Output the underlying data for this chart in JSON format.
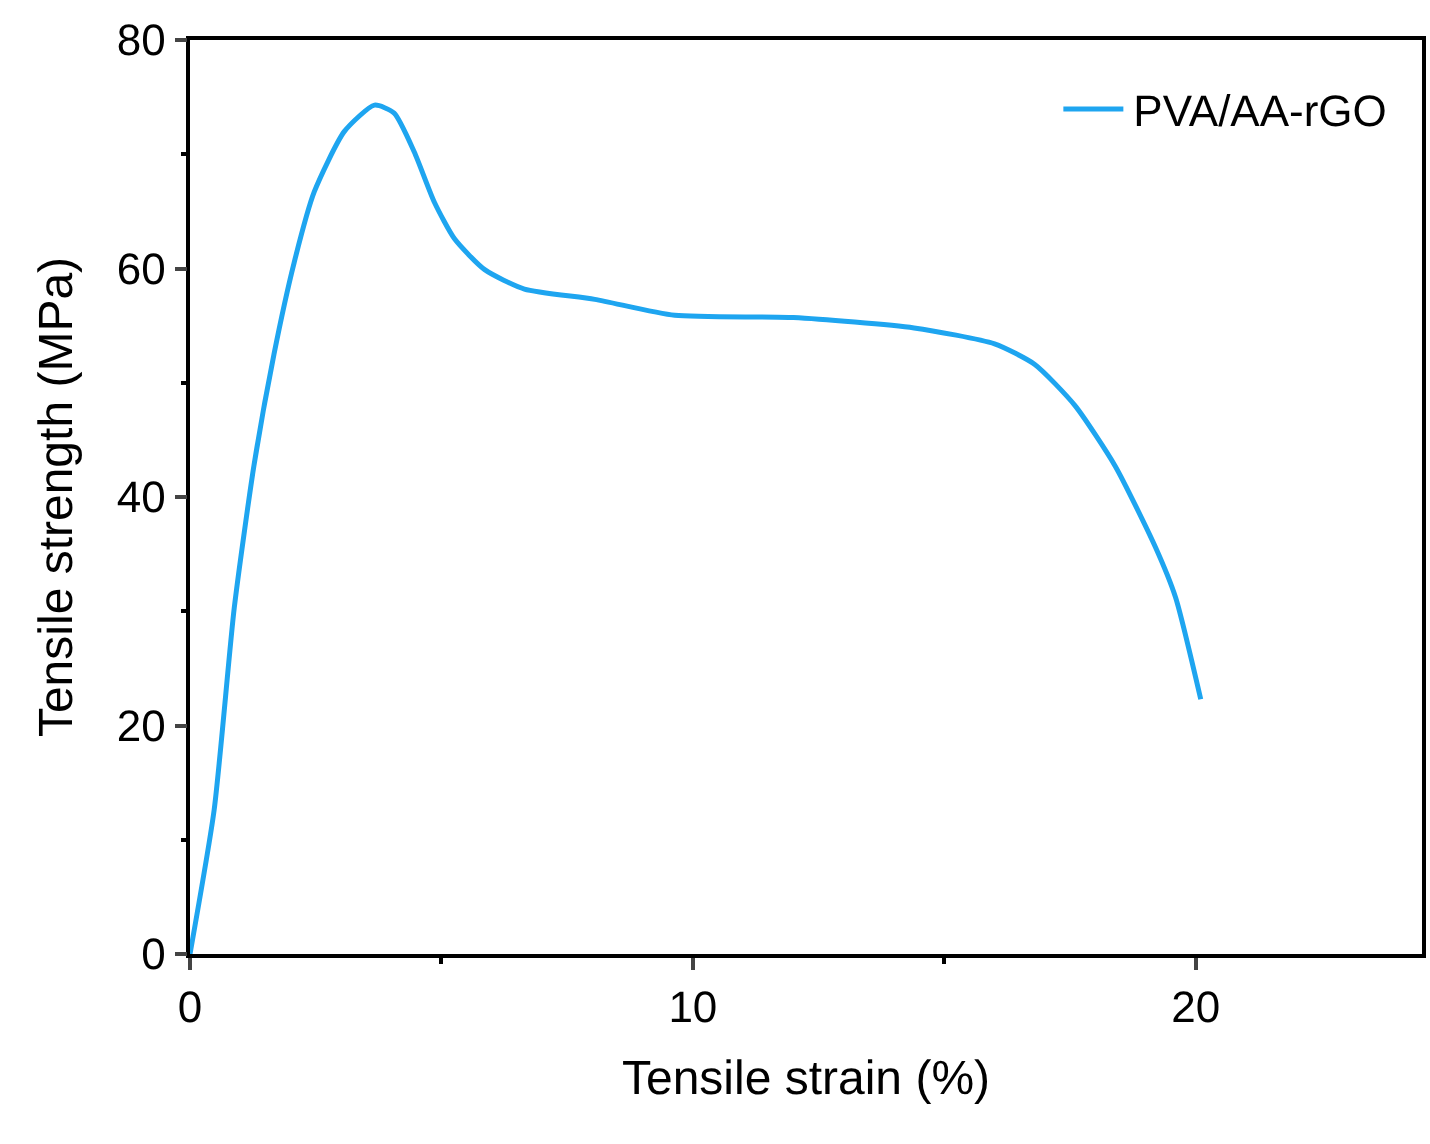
{
  "chart_data": {
    "type": "line",
    "xlabel": "Tensile strain (%)",
    "ylabel": "Tensile strength (MPa)",
    "xlim": [
      0,
      24.5
    ],
    "ylim": [
      0,
      80
    ],
    "xticks": [
      0,
      10,
      20
    ],
    "yticks": [
      0,
      20,
      40,
      60,
      80
    ],
    "legend": "top right",
    "series": [
      {
        "name": "PVA/AA-rGO",
        "color": "#1ea5f0",
        "x": [
          0,
          0.48,
          0.88,
          1.27,
          1.67,
          2.07,
          2.47,
          3.07,
          3.67,
          4.06,
          4.46,
          4.86,
          5.26,
          5.86,
          6.65,
          8.05,
          9.64,
          12.0,
          14.4,
          16.0,
          16.8,
          17.6,
          18.4,
          19.2,
          19.6,
          20.1
        ],
        "values": [
          0,
          12.6,
          30.3,
          42.7,
          52.5,
          60.5,
          66.7,
          72,
          74.3,
          73.6,
          70.2,
          65.8,
          62.6,
          59.9,
          58.2,
          57.3,
          55.9,
          55.7,
          54.8,
          53.4,
          51.6,
          48.0,
          42.7,
          35.6,
          31.2,
          22.3
        ]
      }
    ]
  }
}
